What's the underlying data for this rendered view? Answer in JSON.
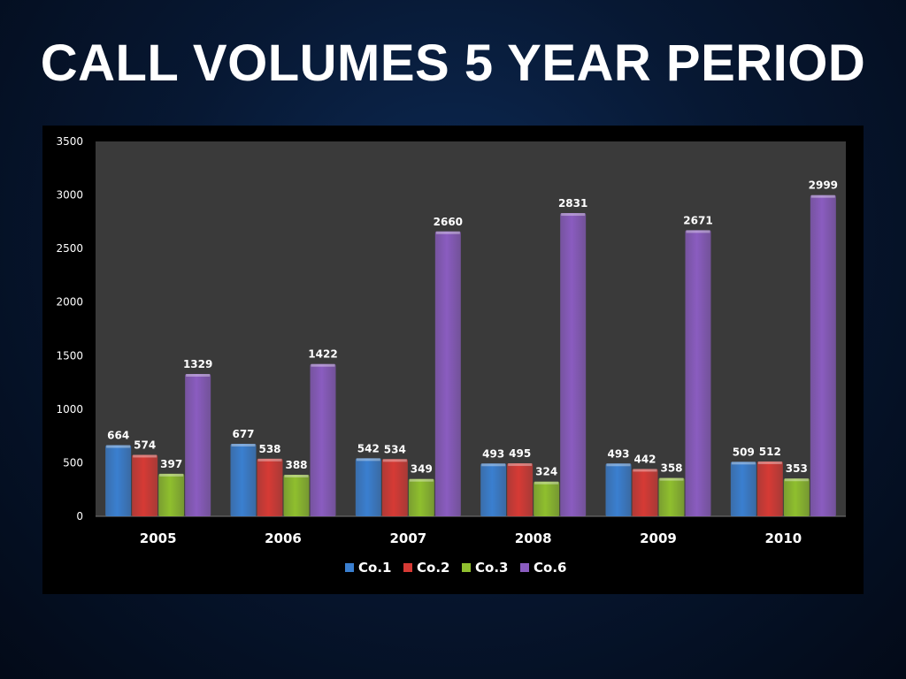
{
  "title": "CALL VOLUMES 5 YEAR PERIOD",
  "chart_data": {
    "type": "bar",
    "title": "CALL VOLUMES 5 YEAR PERIOD",
    "categories": [
      "2005",
      "2006",
      "2007",
      "2008",
      "2009",
      "2010"
    ],
    "series": [
      {
        "name": "Co.1",
        "color": "#3a7fd0",
        "values": [
          664,
          677,
          542,
          493,
          493,
          509
        ]
      },
      {
        "name": "Co.2",
        "color": "#d63a35",
        "values": [
          574,
          538,
          534,
          495,
          442,
          512
        ]
      },
      {
        "name": "Co.3",
        "color": "#8fbf2e",
        "values": [
          397,
          388,
          349,
          324,
          358,
          353
        ]
      },
      {
        "name": "Co.6",
        "color": "#8a5cc0",
        "values": [
          1329,
          1422,
          2660,
          2831,
          2671,
          2999
        ]
      }
    ],
    "ylim": [
      0,
      3500
    ],
    "yticks": [
      0,
      500,
      1000,
      1500,
      2000,
      2500,
      3000,
      3500
    ],
    "xlabel": "",
    "ylabel": "",
    "grid": false,
    "legend": "bottom",
    "plot_background": "#3a3a3a"
  }
}
